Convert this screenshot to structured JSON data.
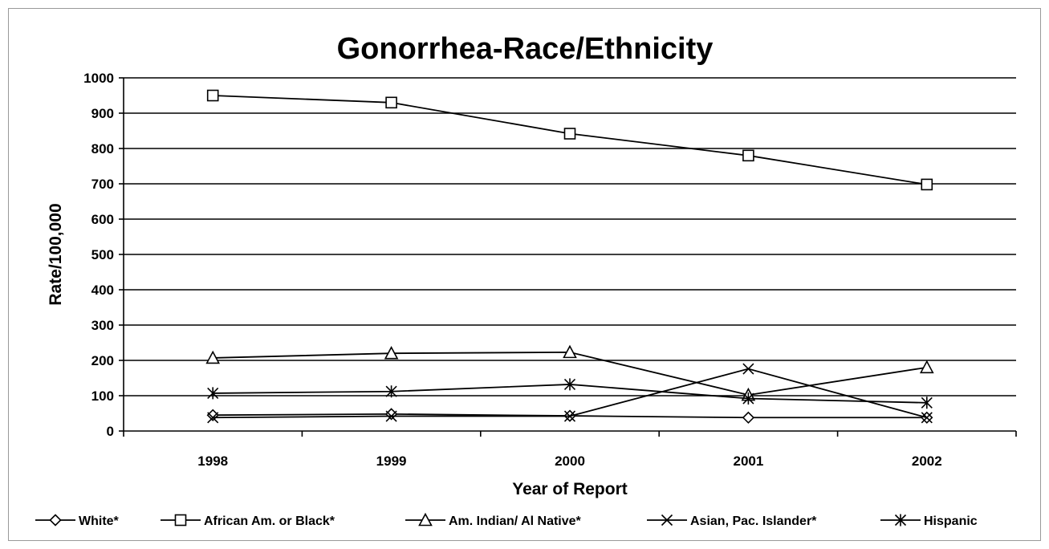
{
  "chart_data": {
    "type": "line",
    "title": "Gonorrhea-Race/Ethnicity",
    "xlabel": "Year of Report",
    "ylabel": "Rate/100,000",
    "categories": [
      "1998",
      "1999",
      "2000",
      "2001",
      "2002"
    ],
    "ylim": [
      0,
      1000
    ],
    "yticks": [
      "0",
      "100",
      "200",
      "300",
      "400",
      "500",
      "600",
      "700",
      "800",
      "900",
      "1000"
    ],
    "grid": true,
    "legend_position": "bottom",
    "series": [
      {
        "name": "White*",
        "marker": "diamond",
        "values": [
          45,
          48,
          43,
          38,
          38
        ]
      },
      {
        "name": "African Am. or Black*",
        "marker": "square",
        "values": [
          950,
          930,
          842,
          780,
          698
        ]
      },
      {
        "name": "Am. Indian/ Al Native*",
        "marker": "triangle",
        "values": [
          207,
          220,
          223,
          102,
          180
        ]
      },
      {
        "name": "Asian, Pac. Islander*",
        "marker": "x",
        "values": [
          38,
          42,
          42,
          176,
          38
        ]
      },
      {
        "name": "Hispanic",
        "marker": "asterisk",
        "values": [
          107,
          112,
          132,
          92,
          80
        ]
      }
    ]
  }
}
